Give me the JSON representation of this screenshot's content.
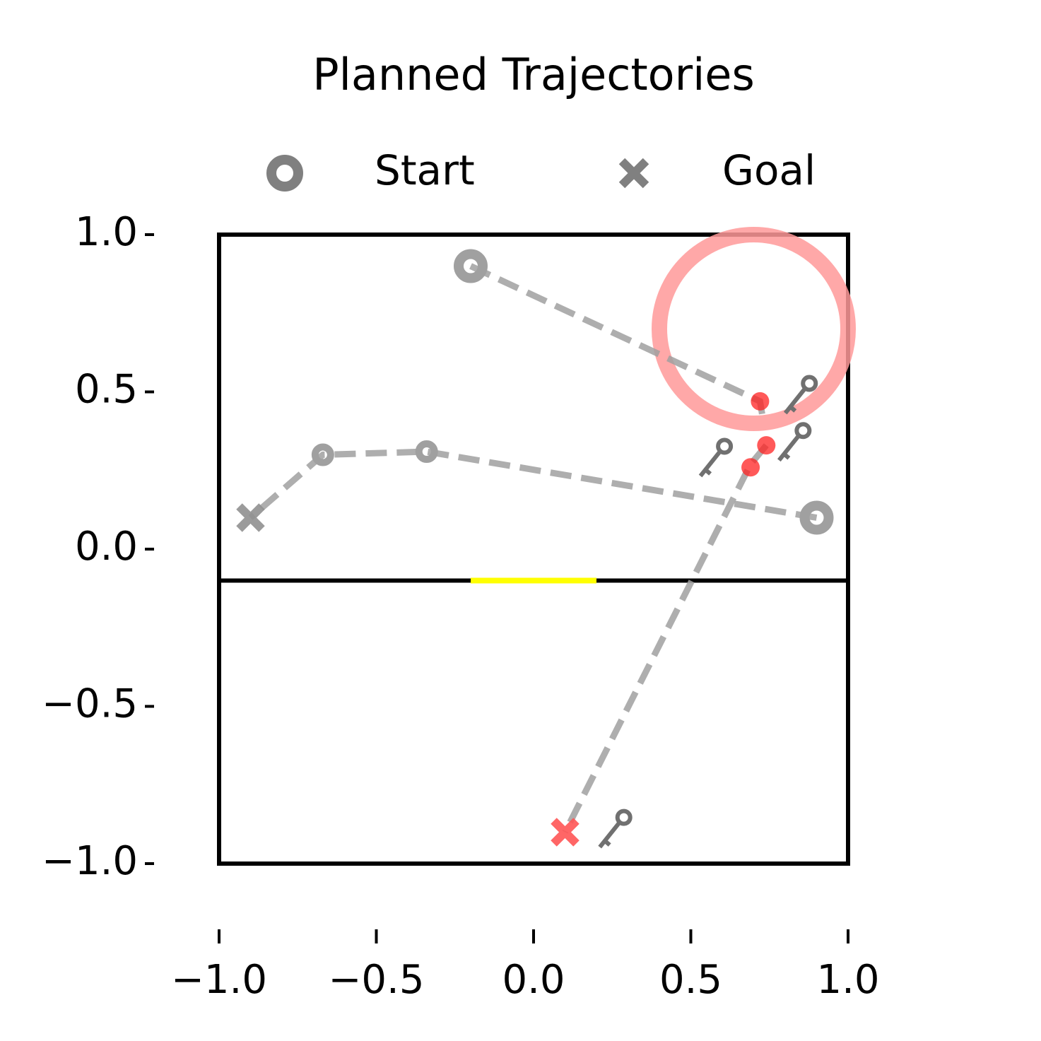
{
  "chart_data": {
    "type": "scatter",
    "title": "Planned Trajectories",
    "xlim": [
      -1,
      1
    ],
    "ylim": [
      -1,
      1
    ],
    "xticks": [
      {
        "value": -1,
        "label": "−1.0"
      },
      {
        "value": -0.5,
        "label": "−0.5"
      },
      {
        "value": 0,
        "label": "0.0"
      },
      {
        "value": 0.5,
        "label": "0.5"
      },
      {
        "value": 1,
        "label": "1.0"
      }
    ],
    "yticks": [
      {
        "value": -1,
        "label": "−1.0"
      },
      {
        "value": -0.5,
        "label": "−0.5"
      },
      {
        "value": 0,
        "label": "0.0"
      },
      {
        "value": 0.5,
        "label": "0.5"
      },
      {
        "value": 1,
        "label": "1.0"
      }
    ],
    "legend": [
      {
        "name": "Start",
        "marker": "start",
        "color": "#808080"
      },
      {
        "name": "Goal",
        "marker": "goal",
        "color": "#808080"
      }
    ],
    "trajectories": [
      {
        "x": [
          -0.2,
          0.72,
          0.73
        ],
        "y": [
          0.9,
          0.47,
          0.41
        ],
        "markers": [
          "start",
          null,
          null
        ],
        "color": "#a0a0a0"
      },
      {
        "x": [
          0.9,
          -0.34,
          -0.67,
          -0.9
        ],
        "y": [
          0.1,
          0.31,
          0.3,
          0.1
        ],
        "markers": [
          "start",
          "waypoint",
          "waypoint",
          "goal"
        ],
        "color": "#a0a0a0"
      },
      {
        "x": [
          0.74,
          0.69,
          0.1
        ],
        "y": [
          0.33,
          0.27,
          -0.9
        ],
        "markers": [
          null,
          null,
          "goal"
        ],
        "color": "#a0a0a0",
        "goal_color": "#ff5555"
      }
    ],
    "obstacle": {
      "x": 0.7,
      "y": 0.7,
      "r": 0.3,
      "color": "#ff9999"
    },
    "wall": {
      "y": -0.1,
      "color": "#000000"
    },
    "door": {
      "x": [
        -0.2,
        0.2
      ],
      "y": -0.1,
      "color": "#ffff00"
    },
    "collisions": {
      "x": [
        0.72,
        0.74,
        0.69
      ],
      "y": [
        0.47,
        0.33,
        0.26
      ],
      "color": "#ff2222"
    },
    "keys": {
      "x": [
        0.85,
        0.83,
        0.58,
        0.26
      ],
      "y": [
        0.5,
        0.35,
        0.3,
        -0.88
      ],
      "color": "#707070"
    }
  }
}
